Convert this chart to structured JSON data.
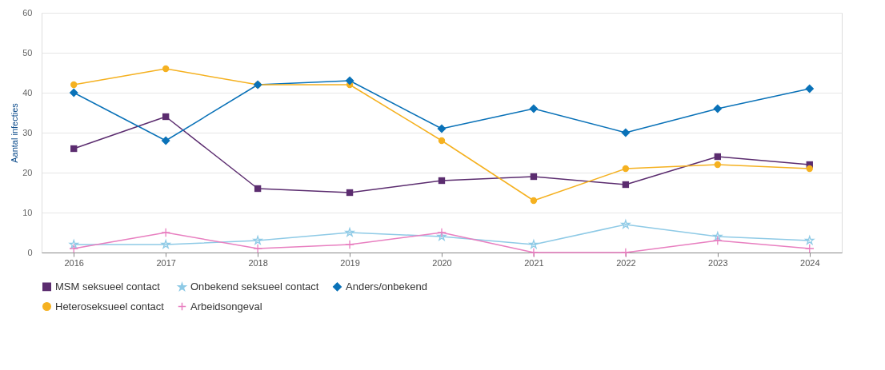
{
  "chart_data": {
    "type": "line",
    "ylabel": "Aantal infecties",
    "categories": [
      "2016",
      "2017",
      "2018",
      "2019",
      "2020",
      "2021",
      "2022",
      "2023",
      "2024"
    ],
    "ylim": [
      0,
      60
    ],
    "yticks": [
      0,
      10,
      20,
      30,
      40,
      50,
      60
    ],
    "grid": "y",
    "legend": "bottom",
    "series": [
      {
        "name": "MSM seksueel contact",
        "color": "#5b2c6f",
        "marker": "square",
        "values": [
          26,
          34,
          16,
          15,
          18,
          19,
          17,
          24,
          22
        ]
      },
      {
        "name": "Onbekend seksueel contact",
        "color": "#8ecae6",
        "marker": "star",
        "values": [
          2,
          2,
          3,
          5,
          4,
          2,
          7,
          4,
          3
        ]
      },
      {
        "name": "Anders/onbekend",
        "color": "#0a72b8",
        "marker": "diamond",
        "values": [
          40,
          28,
          42,
          43,
          31,
          36,
          30,
          36,
          41
        ]
      },
      {
        "name": "Heteroseksueel contact",
        "color": "#f5b120",
        "marker": "circle",
        "values": [
          42,
          46,
          42,
          42,
          28,
          13,
          21,
          22,
          21
        ]
      },
      {
        "name": "Arbeidsongeval",
        "color": "#e87fc0",
        "marker": "cross",
        "values": [
          1,
          5,
          1,
          2,
          5,
          0,
          0,
          3,
          1
        ]
      }
    ]
  }
}
